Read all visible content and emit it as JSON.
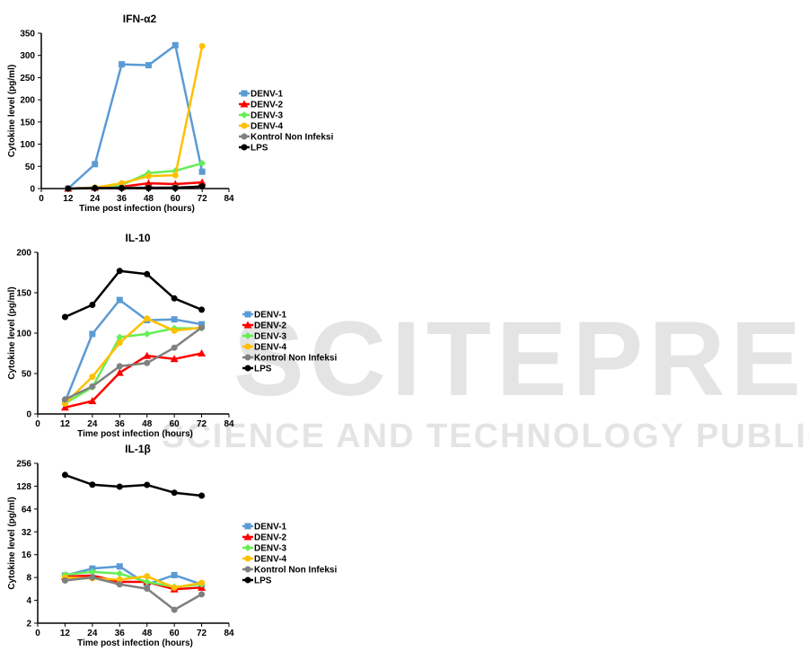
{
  "watermark": {
    "main": "SCITEPRESS",
    "sub": "SCIENCE AND TECHNOLOGY PUBLICATIONS"
  },
  "colors": {
    "DENV-1": "#5b9bd5",
    "DENV-2": "#ff0000",
    "DENV-3": "#66ee55",
    "DENV-4": "#ffc000",
    "Kontrol Non Infeksi": "#808080",
    "LPS": "#000000"
  },
  "chart_data": [
    {
      "type": "line",
      "title": "IFN-α2",
      "xlabel": "Time post infection (hours)",
      "ylabel": "Cytokine level (pg/ml)",
      "x": [
        12,
        24,
        36,
        48,
        60,
        72
      ],
      "xlim": [
        0,
        84
      ],
      "xticks": [
        0,
        12,
        24,
        36,
        48,
        60,
        72,
        84
      ],
      "ylim": [
        0,
        350
      ],
      "yticks": [
        0,
        50,
        100,
        150,
        200,
        250,
        300,
        350
      ],
      "yscale": "linear",
      "legend_position": "right",
      "series": [
        {
          "name": "DENV-1",
          "marker": "square",
          "values": [
            0,
            55,
            280,
            278,
            323,
            38
          ]
        },
        {
          "name": "DENV-2",
          "marker": "triangle",
          "values": [
            0,
            2,
            4,
            12,
            10,
            14
          ]
        },
        {
          "name": "DENV-3",
          "marker": "diamond",
          "values": [
            0,
            2,
            8,
            35,
            40,
            57
          ]
        },
        {
          "name": "DENV-4",
          "marker": "circle",
          "values": [
            0,
            2,
            12,
            28,
            30,
            321
          ]
        },
        {
          "name": "Kontrol Non Infeksi",
          "marker": "circle",
          "values": [
            0,
            1,
            2,
            2,
            3,
            4
          ]
        },
        {
          "name": "LPS",
          "marker": "circle",
          "values": [
            0,
            1,
            1,
            1,
            1,
            5
          ]
        }
      ]
    },
    {
      "type": "line",
      "title": "IL-10",
      "xlabel": "Time post infection (hours)",
      "ylabel": "Cytokine level (pg/ml)",
      "x": [
        12,
        24,
        36,
        48,
        60,
        72
      ],
      "xlim": [
        0,
        84
      ],
      "xticks": [
        0,
        12,
        24,
        36,
        48,
        60,
        72,
        84
      ],
      "ylim": [
        0,
        200
      ],
      "yticks": [
        0,
        50,
        100,
        150,
        200
      ],
      "yscale": "linear",
      "legend_position": "right",
      "series": [
        {
          "name": "DENV-1",
          "marker": "square",
          "values": [
            15,
            99,
            141,
            116,
            117,
            111
          ]
        },
        {
          "name": "DENV-2",
          "marker": "triangle",
          "values": [
            8,
            16,
            51,
            72,
            68,
            75
          ]
        },
        {
          "name": "DENV-3",
          "marker": "diamond",
          "values": [
            13,
            33,
            95,
            99,
            106,
            106
          ]
        },
        {
          "name": "DENV-4",
          "marker": "circle",
          "values": [
            13,
            46,
            88,
            118,
            103,
            107
          ]
        },
        {
          "name": "Kontrol Non Infeksi",
          "marker": "circle",
          "values": [
            18,
            34,
            59,
            63,
            82,
            107
          ]
        },
        {
          "name": "LPS",
          "marker": "circle",
          "values": [
            120,
            135,
            177,
            173,
            143,
            129
          ]
        }
      ]
    },
    {
      "type": "line",
      "title": "IL-1β",
      "xlabel": "Time post infection (hours)",
      "ylabel": "Cytokine level (pg/ml)",
      "x": [
        12,
        24,
        36,
        48,
        60,
        72
      ],
      "xlim": [
        0,
        84
      ],
      "xticks": [
        0,
        12,
        24,
        36,
        48,
        60,
        72,
        84
      ],
      "ylim": [
        2,
        256
      ],
      "yticks": [
        2,
        4,
        8,
        16,
        32,
        64,
        128,
        256
      ],
      "yscale": "log2",
      "legend_position": "right",
      "series": [
        {
          "name": "DENV-1",
          "marker": "square",
          "values": [
            8.5,
            10.5,
            11.2,
            6.5,
            8.6,
            6.5
          ]
        },
        {
          "name": "DENV-2",
          "marker": "triangle",
          "values": [
            8.2,
            8.5,
            7.0,
            7.0,
            5.6,
            5.9
          ]
        },
        {
          "name": "DENV-3",
          "marker": "diamond",
          "values": [
            8.7,
            9.5,
            9.0,
            7.0,
            6.0,
            6.5
          ]
        },
        {
          "name": "DENV-4",
          "marker": "circle",
          "values": [
            8.0,
            7.8,
            7.5,
            8.3,
            5.9,
            6.8
          ]
        },
        {
          "name": "Kontrol Non Infeksi",
          "marker": "circle",
          "values": [
            7.3,
            8.0,
            6.5,
            5.7,
            3.0,
            4.8
          ]
        },
        {
          "name": "LPS",
          "marker": "circle",
          "values": [
            180,
            134,
            126,
            133,
            105,
            96
          ]
        }
      ]
    }
  ]
}
